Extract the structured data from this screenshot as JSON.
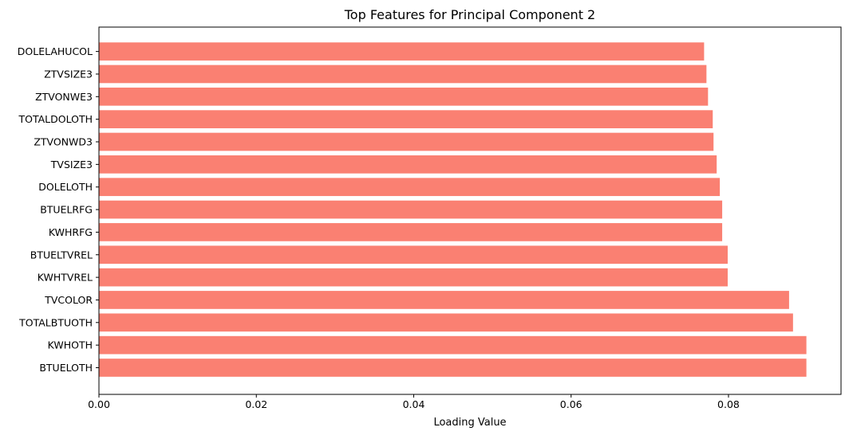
{
  "chart_data": {
    "type": "bar",
    "orientation": "horizontal",
    "title": "Top Features for Principal Component 2",
    "xlabel": "Loading Value",
    "ylabel": "",
    "xlim": [
      0,
      0.0943
    ],
    "xticks": [
      0.0,
      0.02,
      0.04,
      0.06,
      0.08
    ],
    "xtick_labels": [
      "0.00",
      "0.02",
      "0.04",
      "0.06",
      "0.08"
    ],
    "grid": false,
    "bar_color": "#fa8072",
    "categories": [
      "BTUELOTH",
      "KWHOTH",
      "TOTALBTUOTH",
      "TVCOLOR",
      "KWHTVREL",
      "BTUELTVREL",
      "KWHRFG",
      "BTUELRFG",
      "DOLELOTH",
      "TVSIZE3",
      "ZTVONWD3",
      "TOTALDOLOTH",
      "ZTVONWE3",
      "ZTVSIZE3",
      "DOLELAHUCOL"
    ],
    "values": [
      0.0899,
      0.0899,
      0.0882,
      0.0877,
      0.0799,
      0.0799,
      0.0792,
      0.0792,
      0.0789,
      0.0785,
      0.0781,
      0.078,
      0.0774,
      0.0772,
      0.0769
    ]
  }
}
